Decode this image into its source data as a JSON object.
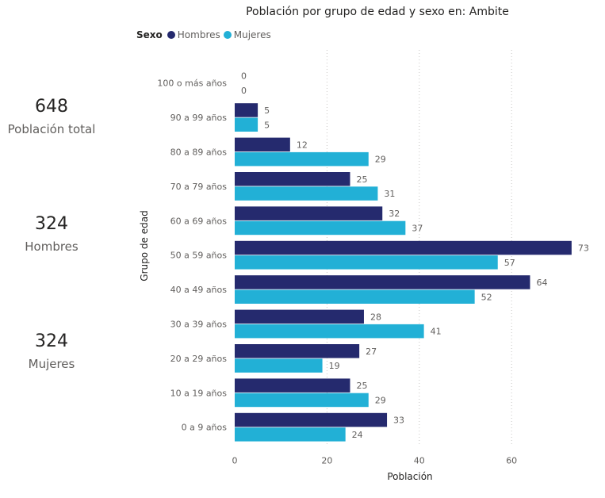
{
  "kpis": [
    {
      "value": "648",
      "label": "Población total"
    },
    {
      "value": "324",
      "label": "Hombres"
    },
    {
      "value": "324",
      "label": "Mujeres"
    }
  ],
  "legend": {
    "title": "Sexo",
    "items": [
      {
        "label": "Hombres",
        "color": "#252a6e"
      },
      {
        "label": "Mujeres",
        "color": "#22b0d6"
      }
    ]
  },
  "chart_data": {
    "type": "bar",
    "orientation": "horizontal",
    "title": "Población por grupo de edad y sexo en: Ambite",
    "xlabel": "Población",
    "ylabel": "Grupo de edad",
    "categories": [
      "100 o más años",
      "90 a 99 años",
      "80 a 89 años",
      "70 a 79 años",
      "60 a 69 años",
      "50 a 59 años",
      "40 a 49 años",
      "30 a 39 años",
      "20 a 29 años",
      "10 a 19 años",
      "0 a 9 años"
    ],
    "series": [
      {
        "name": "Hombres",
        "color": "#252a6e",
        "values": [
          0,
          5,
          12,
          25,
          32,
          73,
          64,
          28,
          27,
          25,
          33
        ]
      },
      {
        "name": "Mujeres",
        "color": "#22b0d6",
        "values": [
          0,
          5,
          29,
          31,
          37,
          57,
          52,
          41,
          19,
          29,
          24
        ]
      }
    ],
    "xlim": [
      0,
      73
    ],
    "xticks": [
      0,
      20,
      40,
      60
    ],
    "grid": true,
    "legend_position": "top-left"
  }
}
